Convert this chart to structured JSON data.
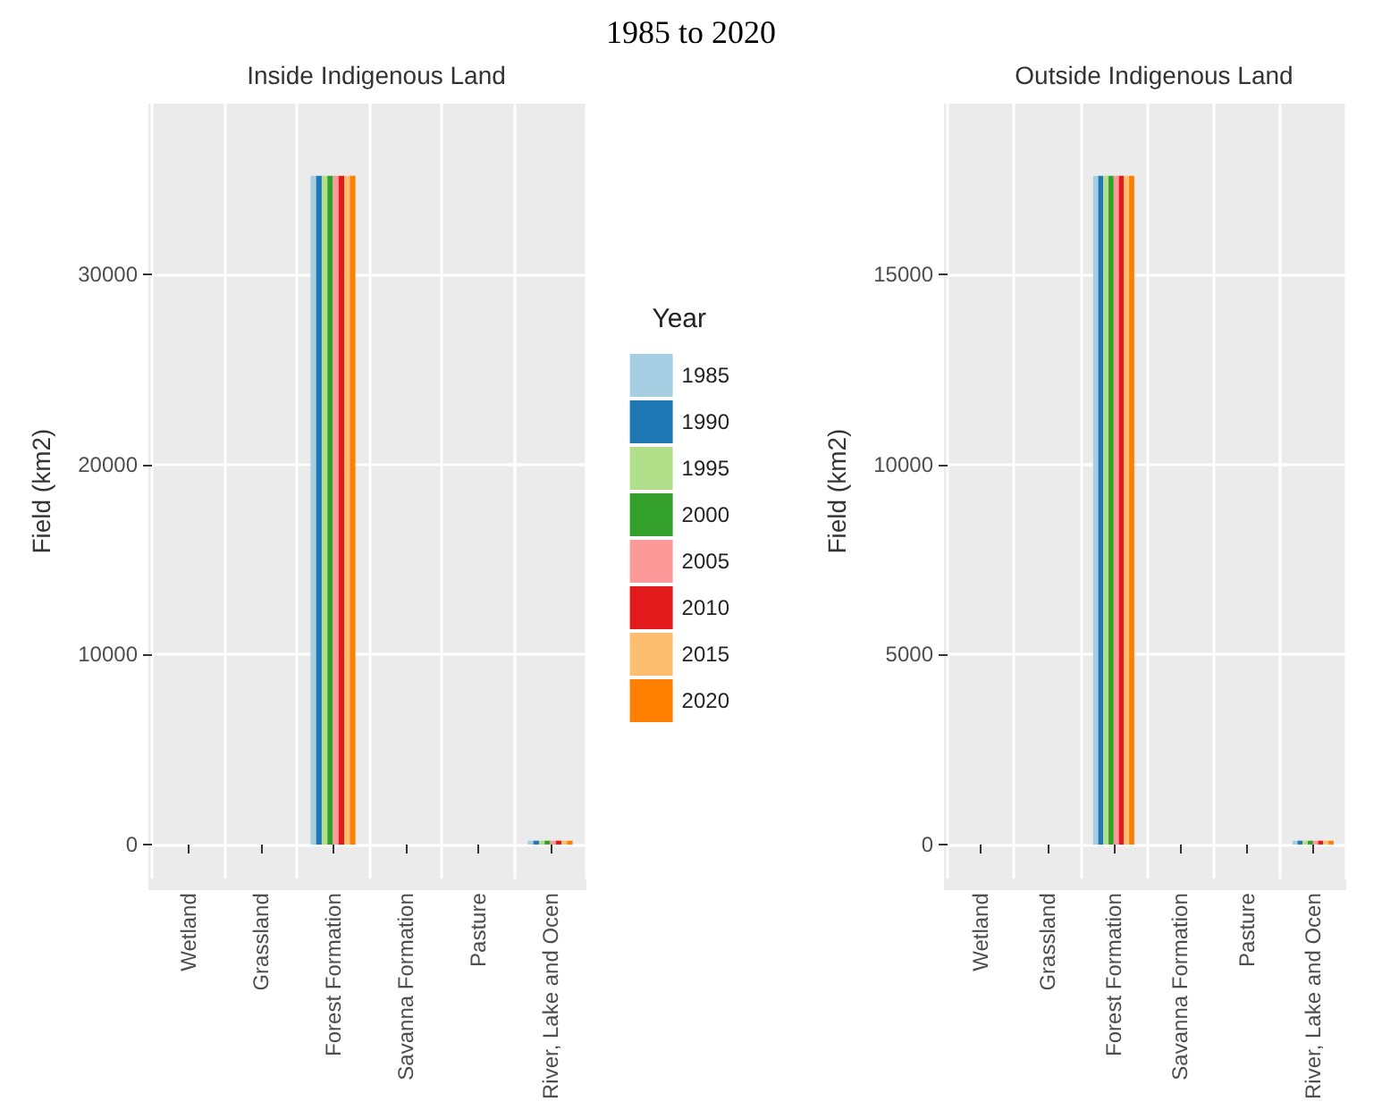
{
  "chart_data": [
    {
      "type": "bar",
      "title": "Inside Indigenous Land",
      "annotations": [
        "1985 to 2020"
      ],
      "ylabel": "Field (km2)",
      "categories": [
        "Wetland",
        "Grassland",
        "Forest Formation",
        "Savanna Formation",
        "Pasture",
        "River, Lake and Ocen"
      ],
      "ylim": [
        -1800,
        39000
      ],
      "yticks": [
        0,
        10000,
        20000,
        30000
      ],
      "grid": true,
      "legend": "right",
      "legend_title": "Year",
      "series": [
        {
          "name": "1985",
          "color": "#a6cee3",
          "values": [
            0,
            0,
            35200,
            0,
            0,
            200
          ]
        },
        {
          "name": "1990",
          "color": "#1f78b4",
          "values": [
            0,
            0,
            35200,
            0,
            0,
            200
          ]
        },
        {
          "name": "1995",
          "color": "#b2df8a",
          "values": [
            0,
            0,
            35200,
            0,
            0,
            200
          ]
        },
        {
          "name": "2000",
          "color": "#33a02c",
          "values": [
            0,
            0,
            35200,
            0,
            0,
            200
          ]
        },
        {
          "name": "2005",
          "color": "#fb9a99",
          "values": [
            0,
            0,
            35200,
            0,
            0,
            200
          ]
        },
        {
          "name": "2010",
          "color": "#e31a1c",
          "values": [
            0,
            0,
            35200,
            0,
            0,
            200
          ]
        },
        {
          "name": "2015",
          "color": "#fdbf6f",
          "values": [
            0,
            0,
            35200,
            0,
            0,
            200
          ]
        },
        {
          "name": "2020",
          "color": "#ff7f00",
          "values": [
            0,
            0,
            35200,
            0,
            0,
            200
          ]
        }
      ]
    },
    {
      "type": "bar",
      "title": "Outside Indigenous Land",
      "ylabel": "Field (km2)",
      "categories": [
        "Wetland",
        "Grassland",
        "Forest Formation",
        "Savanna Formation",
        "Pasture",
        "River, Lake and Ocen"
      ],
      "ylim": [
        -900,
        19500
      ],
      "yticks": [
        0,
        5000,
        10000,
        15000
      ],
      "grid": true,
      "series": [
        {
          "name": "1985",
          "color": "#a6cee3",
          "values": [
            0,
            0,
            17600,
            0,
            0,
            100
          ]
        },
        {
          "name": "1990",
          "color": "#1f78b4",
          "values": [
            0,
            0,
            17600,
            0,
            0,
            100
          ]
        },
        {
          "name": "1995",
          "color": "#b2df8a",
          "values": [
            0,
            0,
            17600,
            0,
            0,
            100
          ]
        },
        {
          "name": "2000",
          "color": "#33a02c",
          "values": [
            0,
            0,
            17600,
            0,
            0,
            100
          ]
        },
        {
          "name": "2005",
          "color": "#fb9a99",
          "values": [
            0,
            0,
            17600,
            0,
            0,
            100
          ]
        },
        {
          "name": "2010",
          "color": "#e31a1c",
          "values": [
            0,
            0,
            17600,
            0,
            0,
            100
          ]
        },
        {
          "name": "2015",
          "color": "#fdbf6f",
          "values": [
            0,
            0,
            17600,
            0,
            0,
            100
          ]
        },
        {
          "name": "2020",
          "color": "#ff7f00",
          "values": [
            0,
            0,
            17600,
            0,
            0,
            100
          ]
        }
      ]
    }
  ]
}
